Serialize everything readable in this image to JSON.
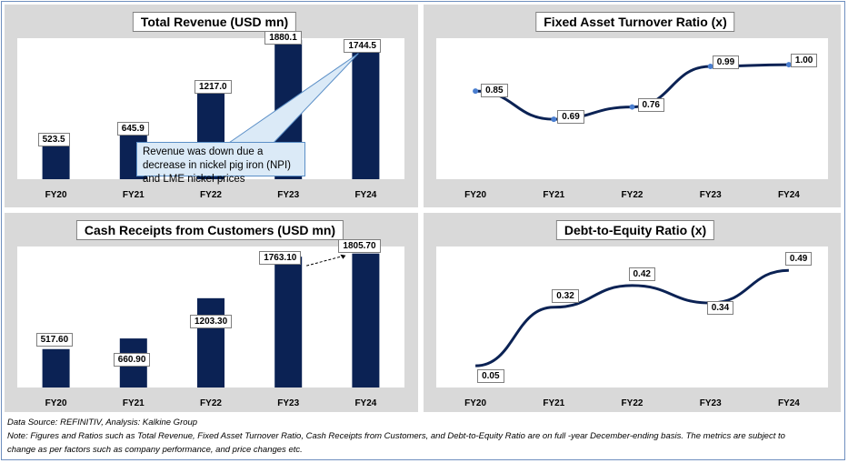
{
  "chart_data": [
    {
      "type": "bar",
      "title": "Total Revenue (USD mn)",
      "categories": [
        "FY20",
        "FY21",
        "FY22",
        "FY23",
        "FY24"
      ],
      "values": [
        523.5,
        645.9,
        1217.0,
        1880.1,
        1744.5
      ],
      "value_labels": [
        "523.5",
        "645.9",
        "1217.0",
        "1880.1",
        "1744.5"
      ],
      "ylim": [
        0,
        1900
      ],
      "color": "#0b2254",
      "annotation": "Revenue was down due a decrease in nickel pig iron (NPI) and LME nickel prices"
    },
    {
      "type": "line",
      "title": "Fixed Asset Turnover Ratio (x)",
      "categories": [
        "FY20",
        "FY21",
        "FY22",
        "FY23",
        "FY24"
      ],
      "values": [
        0.85,
        0.69,
        0.76,
        0.99,
        1.0
      ],
      "value_labels": [
        "0.85",
        "0.69",
        "0.76",
        "0.99",
        "1.00"
      ],
      "ylim": [
        0.35,
        1.15
      ],
      "color": "#0b2254"
    },
    {
      "type": "bar",
      "title": "Cash Receipts from Customers (USD mn)",
      "categories": [
        "FY20",
        "FY21",
        "FY22",
        "FY23",
        "FY24"
      ],
      "values": [
        517.6,
        660.9,
        1203.3,
        1763.1,
        1805.7
      ],
      "value_labels": [
        "517.60",
        "660.90",
        "1203.30",
        "1763.10",
        "1805.70"
      ],
      "ylim": [
        0,
        1900
      ],
      "color": "#0b2254"
    },
    {
      "type": "line",
      "title": "Debt-to-Equity Ratio (x)",
      "categories": [
        "FY20",
        "FY21",
        "FY22",
        "FY23",
        "FY24"
      ],
      "values": [
        0.05,
        0.32,
        0.42,
        0.34,
        0.49
      ],
      "value_labels": [
        "0.05",
        "0.32",
        "0.42",
        "0.34",
        "0.49"
      ],
      "ylim": [
        -0.05,
        0.6
      ],
      "color": "#0b2254"
    }
  ],
  "footer": {
    "source": "Data Source: REFINITIV, Analysis: Kalkine Group",
    "note_line1": "Note: Figures and Ratios such as Total Revenue, Fixed Asset Turnover Ratio, Cash Receipts from Customers, and Debt-to-Equity Ratio are on full -year December-ending basis. The metrics are subject to",
    "note_line2": "change as per factors such as company performance, and price changes etc."
  }
}
